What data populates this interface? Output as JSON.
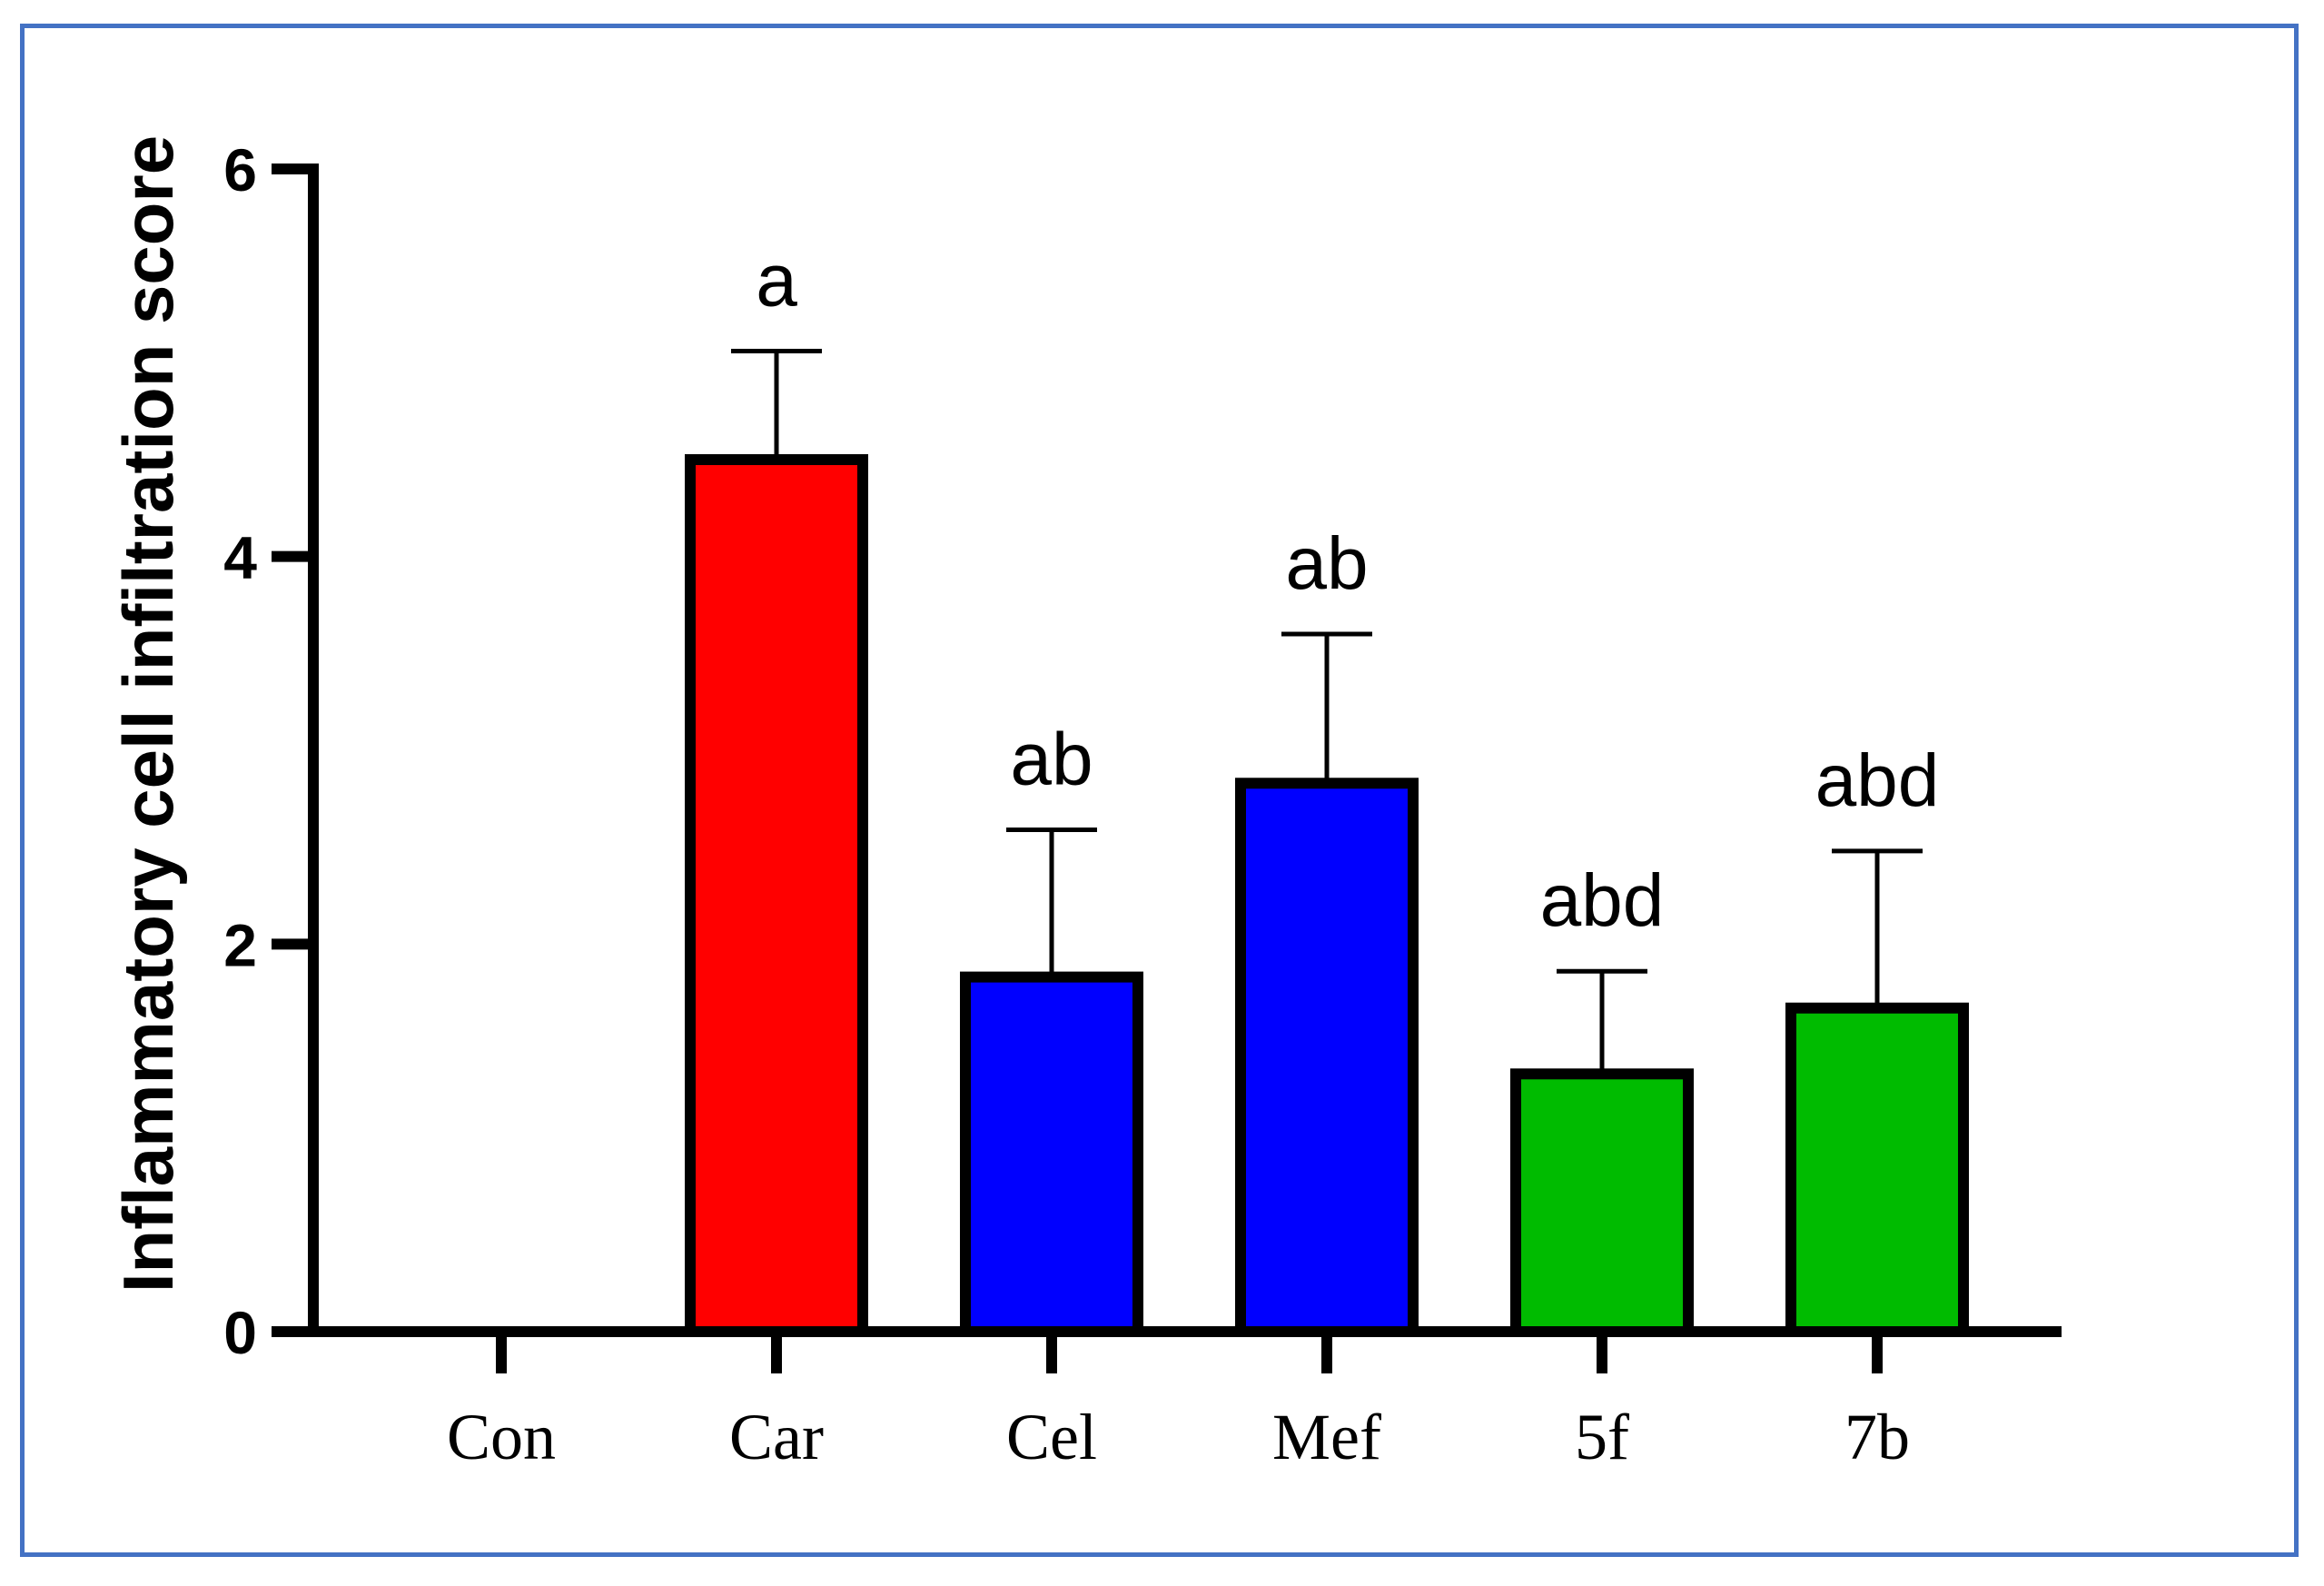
{
  "chart_data": {
    "type": "bar",
    "categories": [
      "Con",
      "Car",
      "Cel",
      "Mef",
      "5f",
      "7b"
    ],
    "values": [
      0,
      4.5,
      1.83,
      2.83,
      1.33,
      1.67
    ],
    "errors": [
      0,
      0.56,
      0.76,
      0.77,
      0.53,
      0.81
    ],
    "annotations": [
      "",
      "a",
      "ab",
      "ab",
      "abd",
      "abd"
    ],
    "bar_colors": [
      "#ffffff",
      "#ff0000",
      "#0000ff",
      "#0000ff",
      "#00bb00",
      "#00bb00"
    ],
    "ylabel": "Inflammatory cell infiltration score",
    "xlabel": "",
    "ylim": [
      0,
      6
    ],
    "yticks": [
      0,
      2,
      4,
      6
    ],
    "ytick_labels": [
      "0",
      "2",
      "4",
      "6"
    ],
    "grid": false,
    "legend": false
  },
  "frame": {
    "border_color": "#4472c4"
  }
}
